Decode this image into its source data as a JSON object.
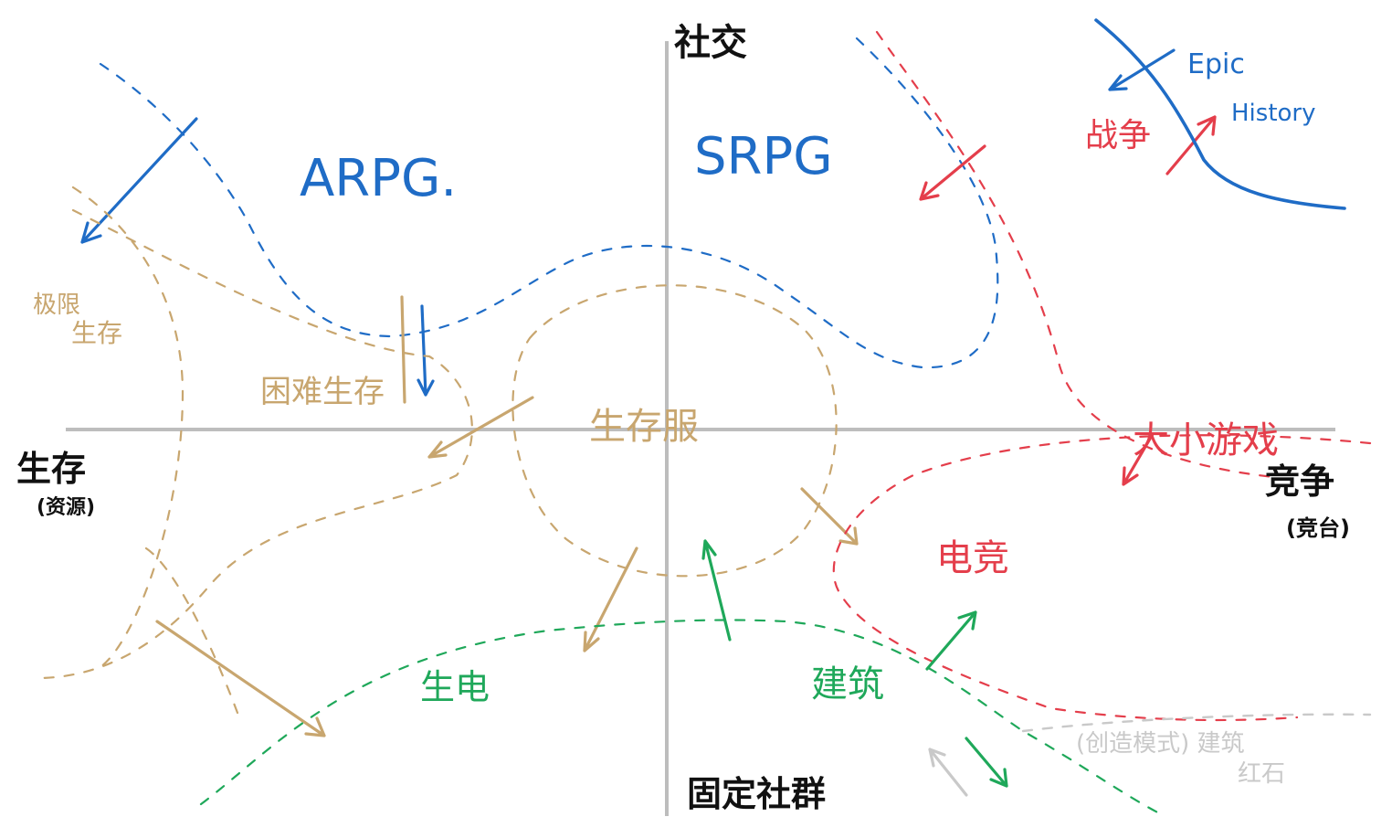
{
  "axes": {
    "top": "社交",
    "bottom": "固定社群",
    "left": "生存",
    "left_sub": "(资源)",
    "right": "竞争",
    "right_sub": "(竞台)"
  },
  "labels": {
    "arpg": "ARPG.",
    "srpg": "SRPG",
    "extreme_survival": [
      "极限",
      "生存"
    ],
    "hard_survival": "困难生存",
    "survival_server": "生存服",
    "war": "战争",
    "epic": "Epic",
    "history": "History",
    "party_games": "大小游戏",
    "esports": "电竞",
    "factory": "生电",
    "building": "建筑",
    "creative": "(创造模式) 建筑",
    "redstone": "红石"
  },
  "colors": {
    "axis": "#bdbdbd",
    "blue": "#1f6cc6",
    "tan": "#c8a66f",
    "red": "#e43e4b",
    "green": "#1fa85a",
    "gray": "#c9c9c9",
    "black": "#111111"
  }
}
